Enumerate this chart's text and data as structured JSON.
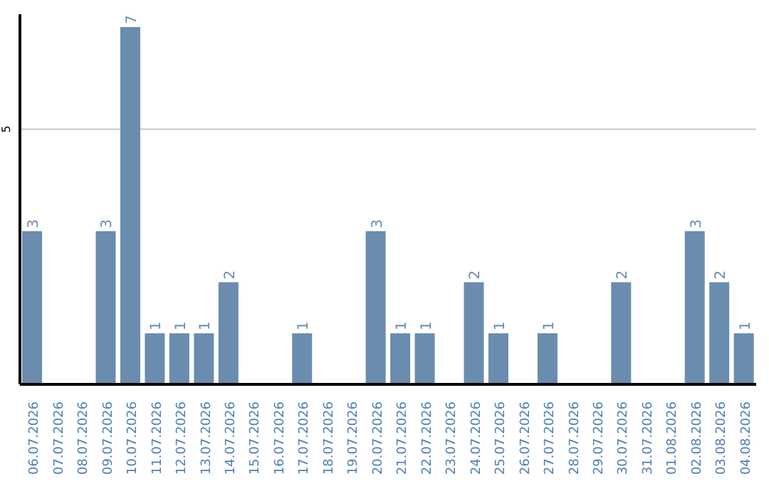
{
  "chart_data": {
    "type": "bar",
    "categories": [
      "06.07.2026",
      "07.07.2026",
      "08.07.2026",
      "09.07.2026",
      "10.07.2026",
      "11.07.2026",
      "12.07.2026",
      "13.07.2026",
      "14.07.2026",
      "15.07.2026",
      "16.07.2026",
      "17.07.2026",
      "18.07.2026",
      "19.07.2026",
      "20.07.2026",
      "21.07.2026",
      "22.07.2026",
      "23.07.2026",
      "24.07.2026",
      "25.07.2026",
      "26.07.2026",
      "27.07.2026",
      "28.07.2026",
      "29.07.2026",
      "30.07.2026",
      "31.07.2026",
      "01.08.2026",
      "02.08.2026",
      "03.08.2026",
      "04.08.2026"
    ],
    "values": [
      3,
      0,
      0,
      3,
      7,
      1,
      1,
      1,
      2,
      0,
      0,
      1,
      0,
      0,
      3,
      1,
      1,
      0,
      2,
      1,
      0,
      1,
      0,
      0,
      2,
      0,
      0,
      3,
      2,
      1
    ],
    "value_labels": [
      "3",
      null,
      null,
      "3",
      "7",
      "1",
      "1",
      "1",
      "2",
      null,
      null,
      "1",
      null,
      null,
      "3",
      "1",
      "1",
      null,
      "2",
      "1",
      null,
      "1",
      null,
      null,
      "2",
      null,
      null,
      "3",
      "2",
      "1"
    ],
    "color": "#6a8caf",
    "ylim": [
      0,
      7.25
    ],
    "yticks": [
      5
    ],
    "grid": "y"
  }
}
